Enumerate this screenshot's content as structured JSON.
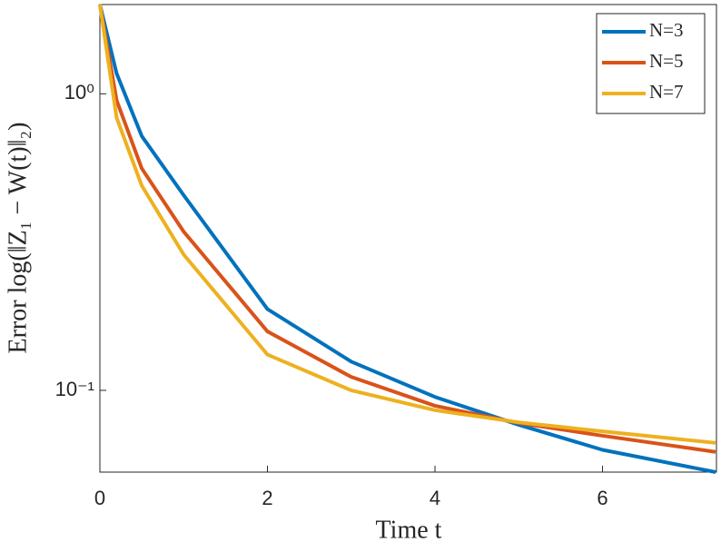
{
  "chart_data": {
    "type": "line",
    "xlabel": "Time  t",
    "ylabel": "Error  log(‖Z₁ − W(t)‖₂)",
    "x": [
      0,
      0.2,
      0.5,
      1,
      2,
      3,
      4,
      5,
      6,
      7.35
    ],
    "series": [
      {
        "name": "N=3",
        "color": "#0072BD",
        "values": [
          2.0,
          1.17,
          0.72,
          0.455,
          0.188,
          0.125,
          0.095,
          0.0765,
          0.063,
          0.053
        ]
      },
      {
        "name": "N=5",
        "color": "#D95319",
        "values": [
          2.0,
          0.95,
          0.56,
          0.343,
          0.158,
          0.111,
          0.0887,
          0.0776,
          0.0703,
          0.062
        ]
      },
      {
        "name": "N=7",
        "color": "#EDB120",
        "values": [
          2.0,
          0.83,
          0.49,
          0.287,
          0.132,
          0.1,
          0.0857,
          0.078,
          0.0727,
          0.0665
        ]
      }
    ],
    "xlim": [
      0,
      7.36
    ],
    "xticks": [
      0,
      2,
      4,
      6
    ],
    "ylim": [
      0.053,
      2.0
    ],
    "yscale": "log",
    "yticks": [
      {
        "value": 0.1,
        "label": "10⁻¹"
      },
      {
        "value": 1,
        "label": "10⁰"
      }
    ],
    "grid": false,
    "legend": "upper right"
  }
}
